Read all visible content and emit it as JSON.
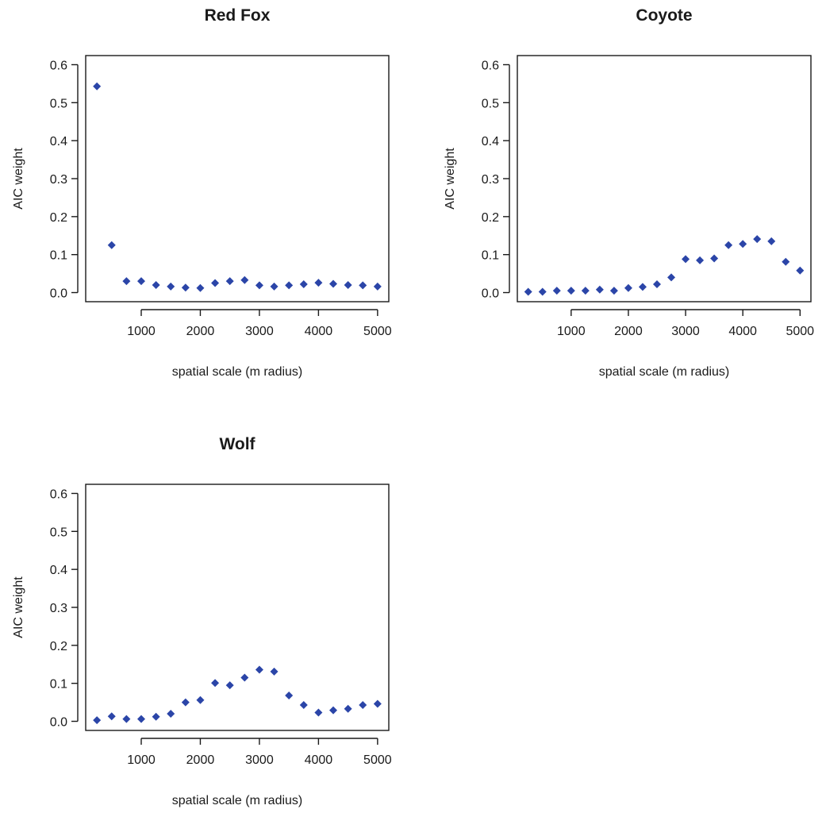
{
  "chart_data": [
    {
      "type": "scatter",
      "title": "Red Fox",
      "xlabel": "spatial scale (m radius)",
      "ylabel": "AIC weight",
      "xlim": [
        250,
        5000
      ],
      "ylim": [
        0,
        0.6
      ],
      "xticks": [
        1000,
        2000,
        3000,
        4000,
        5000
      ],
      "xtick_labels": [
        "1000",
        "2000",
        "3000",
        "4000",
        "5000"
      ],
      "yticks": [
        0,
        0.1,
        0.2,
        0.3,
        0.4,
        0.5,
        0.6
      ],
      "ytick_labels": [
        "0.0",
        "0.1",
        "0.2",
        "0.3",
        "0.4",
        "0.5",
        "0.6"
      ],
      "grid": false,
      "marker": "diamond",
      "color": "#2b45a8",
      "x": [
        250,
        500,
        750,
        1000,
        1250,
        1500,
        1750,
        2000,
        2250,
        2500,
        2750,
        3000,
        3250,
        3500,
        3750,
        4000,
        4250,
        4500,
        4750,
        5000
      ],
      "y": [
        0.543,
        0.125,
        0.03,
        0.03,
        0.02,
        0.016,
        0.013,
        0.012,
        0.025,
        0.03,
        0.033,
        0.019,
        0.016,
        0.019,
        0.022,
        0.026,
        0.023,
        0.02,
        0.019,
        0.016
      ]
    },
    {
      "type": "scatter",
      "title": "Coyote",
      "xlabel": "spatial scale (m radius)",
      "ylabel": "AIC weight",
      "xlim": [
        250,
        5000
      ],
      "ylim": [
        0,
        0.6
      ],
      "xticks": [
        1000,
        2000,
        3000,
        4000,
        5000
      ],
      "xtick_labels": [
        "1000",
        "2000",
        "3000",
        "4000",
        "5000"
      ],
      "yticks": [
        0,
        0.1,
        0.2,
        0.3,
        0.4,
        0.5,
        0.6
      ],
      "ytick_labels": [
        "0.0",
        "0.1",
        "0.2",
        "0.3",
        "0.4",
        "0.5",
        "0.6"
      ],
      "grid": false,
      "marker": "diamond",
      "color": "#2b45a8",
      "x": [
        250,
        500,
        750,
        1000,
        1250,
        1500,
        1750,
        2000,
        2250,
        2500,
        2750,
        3000,
        3250,
        3500,
        3750,
        4000,
        4250,
        4500,
        4750,
        5000
      ],
      "y": [
        0.002,
        0.002,
        0.005,
        0.005,
        0.005,
        0.008,
        0.005,
        0.012,
        0.015,
        0.022,
        0.04,
        0.088,
        0.085,
        0.09,
        0.125,
        0.128,
        0.141,
        0.135,
        0.081,
        0.058
      ]
    },
    {
      "type": "scatter",
      "title": "Wolf",
      "xlabel": "spatial scale (m radius)",
      "ylabel": "AIC weight",
      "xlim": [
        250,
        5000
      ],
      "ylim": [
        0,
        0.6
      ],
      "xticks": [
        1000,
        2000,
        3000,
        4000,
        5000
      ],
      "xtick_labels": [
        "1000",
        "2000",
        "3000",
        "4000",
        "5000"
      ],
      "yticks": [
        0,
        0.1,
        0.2,
        0.3,
        0.4,
        0.5,
        0.6
      ],
      "ytick_labels": [
        "0.0",
        "0.1",
        "0.2",
        "0.3",
        "0.4",
        "0.5",
        "0.6"
      ],
      "grid": false,
      "marker": "diamond",
      "color": "#2b45a8",
      "x": [
        250,
        500,
        750,
        1000,
        1250,
        1500,
        1750,
        2000,
        2250,
        2500,
        2750,
        3000,
        3250,
        3500,
        3750,
        4000,
        4250,
        4500,
        4750,
        5000
      ],
      "y": [
        0.003,
        0.013,
        0.006,
        0.006,
        0.012,
        0.02,
        0.05,
        0.056,
        0.101,
        0.095,
        0.115,
        0.136,
        0.131,
        0.068,
        0.043,
        0.023,
        0.029,
        0.033,
        0.043,
        0.046
      ]
    }
  ]
}
